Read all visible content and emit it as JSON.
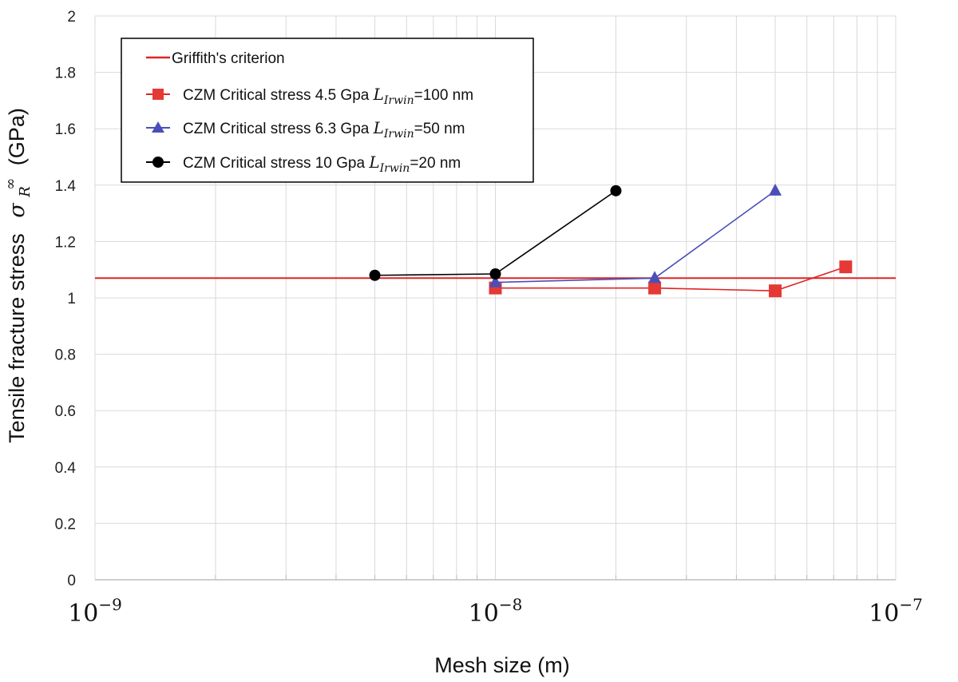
{
  "chart_data": {
    "type": "scatter",
    "xlabel": "Mesh size (m)",
    "ylabel_main": "Tensile fracture stress",
    "ylabel_symbol": "σ",
    "ylabel_sub": "R",
    "ylabel_sup": "∞",
    "ylabel_unit": "(GPa)",
    "x_scale": "log",
    "xlim": [
      1e-09,
      1e-07
    ],
    "ylim": [
      0,
      2
    ],
    "grid": true,
    "legend_position": "top-left",
    "x_ticks": [
      {
        "value": 1e-09,
        "base": "10",
        "exp": "−9"
      },
      {
        "value": 1e-08,
        "base": "10",
        "exp": "−8"
      },
      {
        "value": 1e-07,
        "base": "10",
        "exp": "−7"
      }
    ],
    "y_ticks": [
      "0",
      "0.2",
      "0.4",
      "0.6",
      "0.8",
      "1",
      "1.2",
      "1.4",
      "1.6",
      "1.8",
      "2"
    ],
    "reference_line": {
      "name": "Griffith's criterion",
      "y": 1.07,
      "color": "#e02424"
    },
    "series": [
      {
        "name_prefix": "CZM Critical stress 4.5 Gpa ",
        "name_symbol": "L",
        "name_sub": "Irwin",
        "name_suffix": "=100 nm",
        "marker": "square",
        "color": "#e53935",
        "line_color": "#e02424",
        "x": [
          1e-08,
          2.5e-08,
          5e-08,
          7.5e-08
        ],
        "y": [
          1.035,
          1.035,
          1.025,
          1.11
        ]
      },
      {
        "name_prefix": "CZM Critical stress 6.3 Gpa ",
        "name_symbol": "L",
        "name_sub": "Irwin",
        "name_suffix": "=50 nm",
        "marker": "triangle",
        "color": "#4a4fb8",
        "line_color": "#4a4fb8",
        "x": [
          1e-08,
          2.5e-08,
          5e-08
        ],
        "y": [
          1.055,
          1.07,
          1.38
        ]
      },
      {
        "name_prefix": "CZM Critical stress 10 Gpa ",
        "name_symbol": "L",
        "name_sub": "Irwin",
        "name_suffix": "=20 nm",
        "marker": "circle",
        "color": "#000000",
        "line_color": "#000000",
        "x": [
          5e-09,
          1e-08,
          2e-08
        ],
        "y": [
          1.08,
          1.085,
          1.38
        ]
      }
    ]
  }
}
